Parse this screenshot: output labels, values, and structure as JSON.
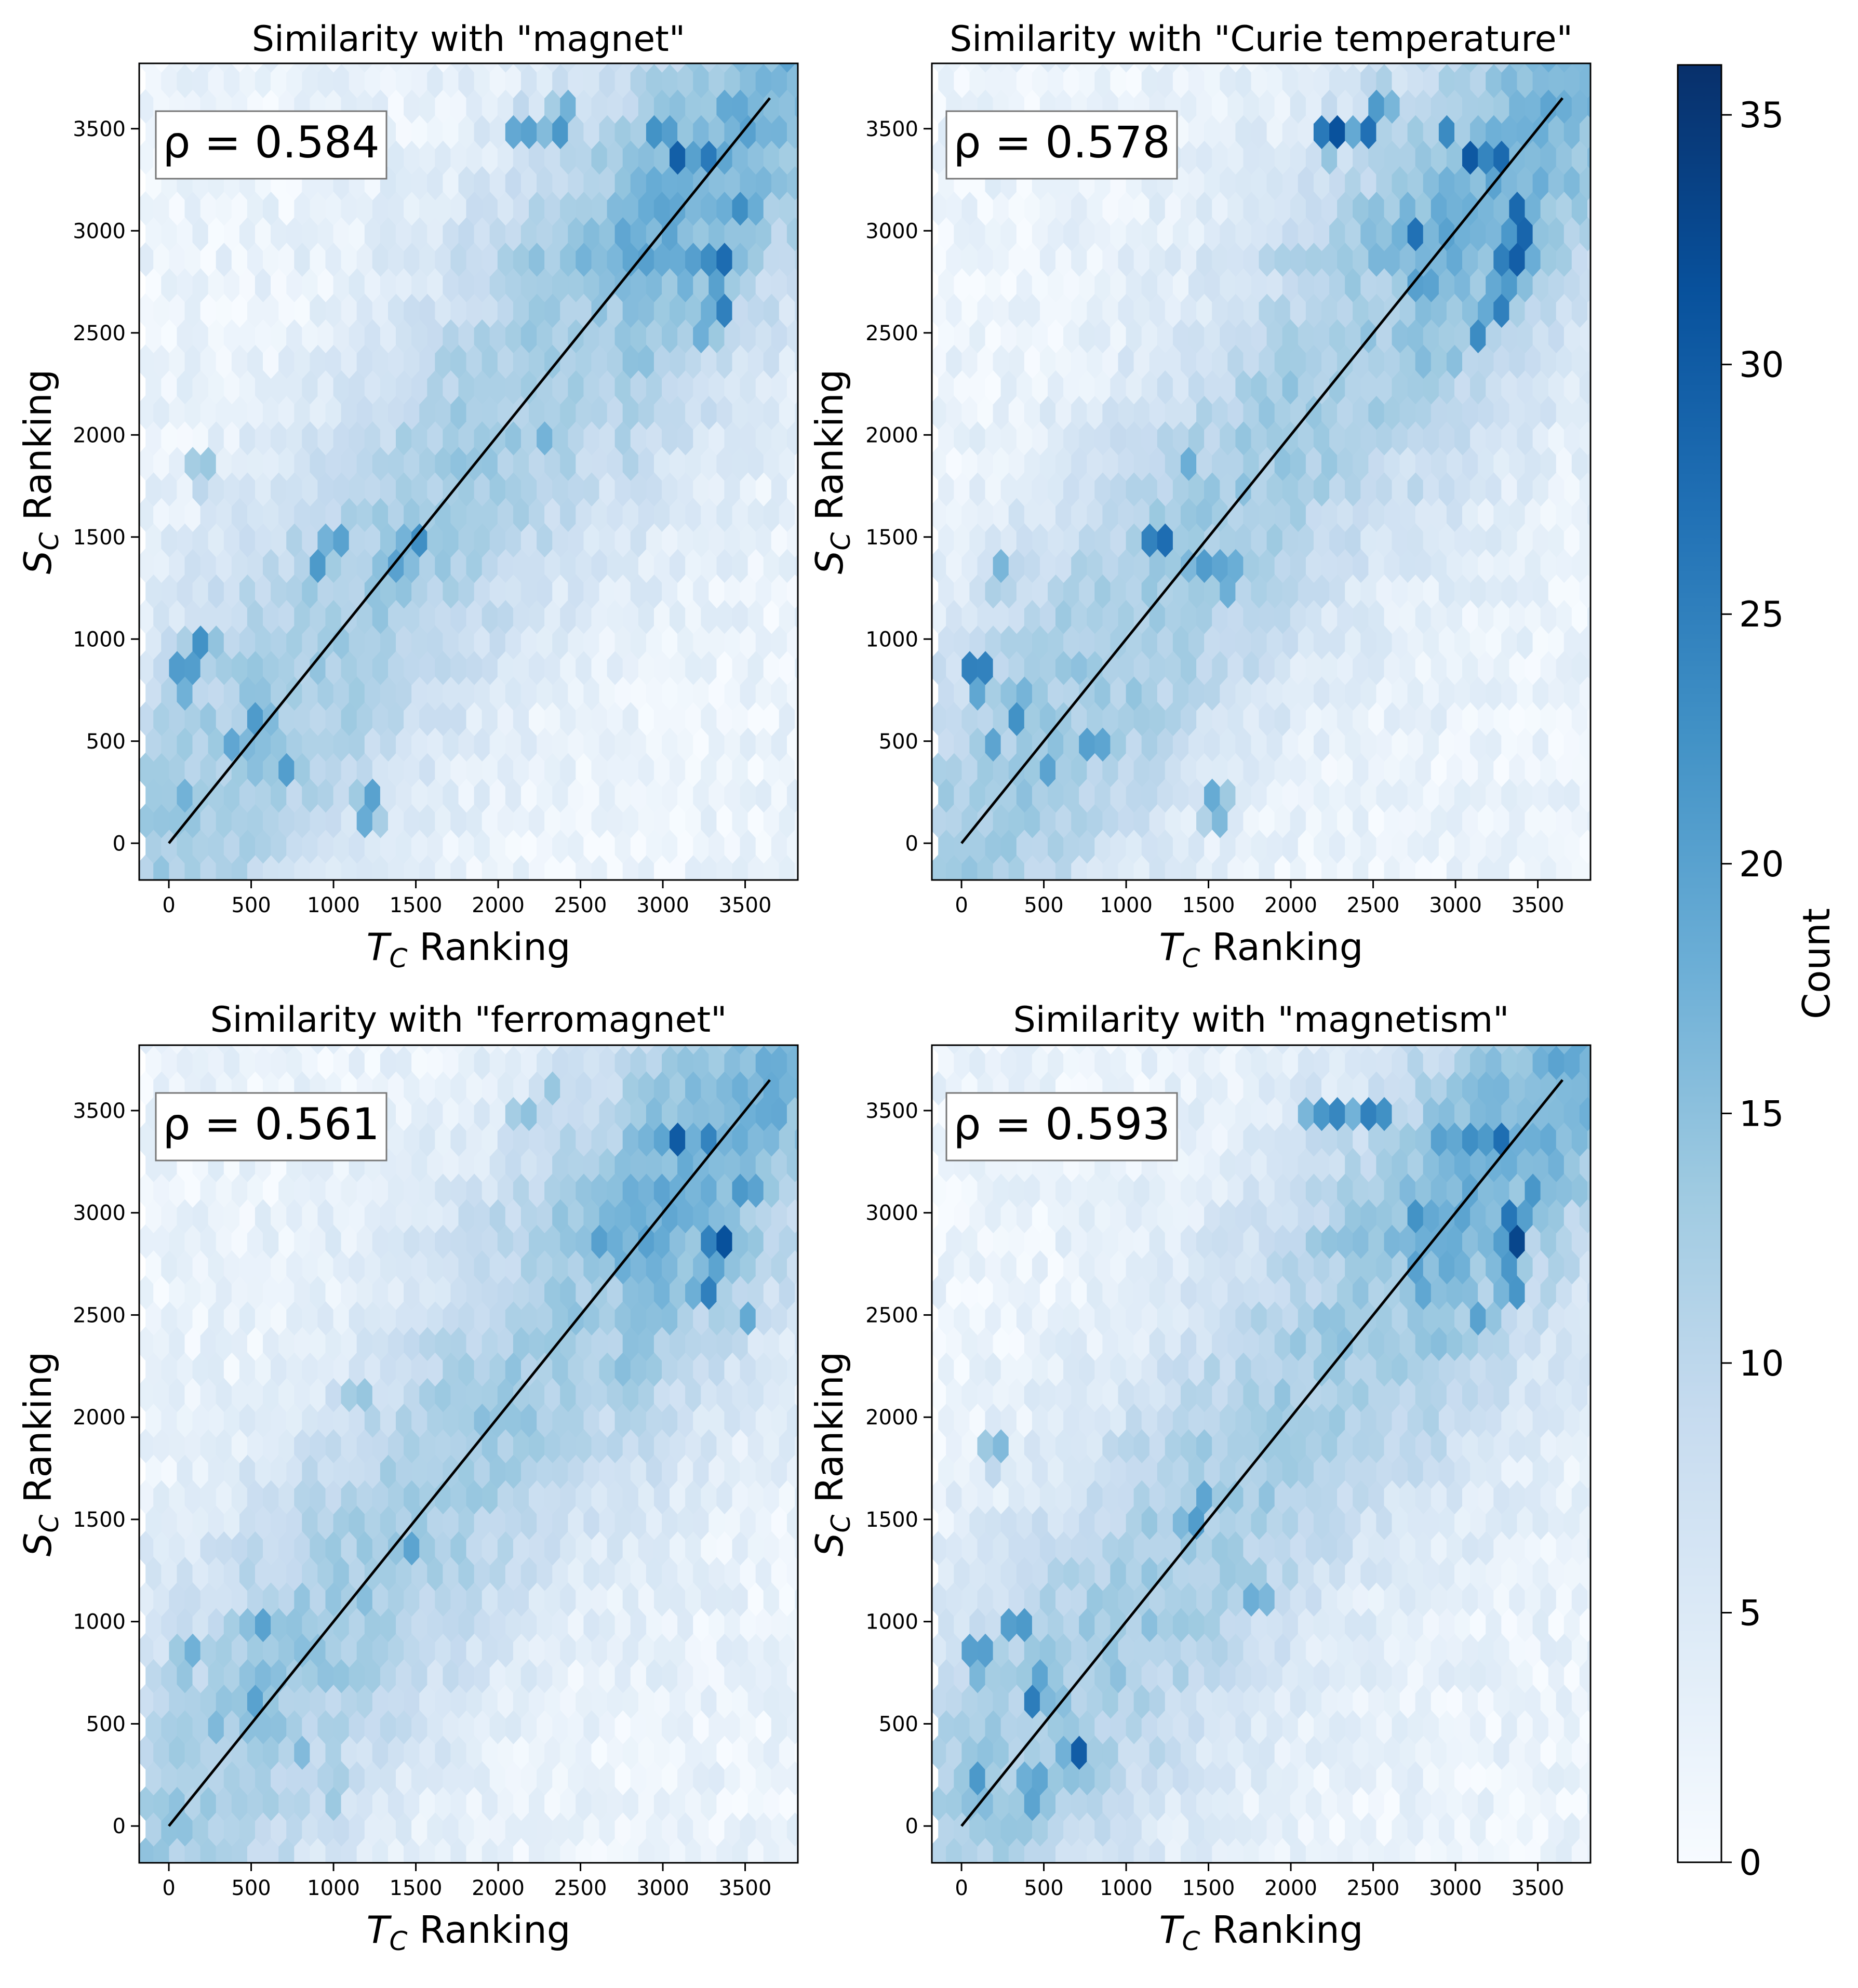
{
  "figure": {
    "colormap": "Blues",
    "colors": {
      "cmap_low": "#f7fbff",
      "cmap_mid": "#6baed6",
      "cmap_high": "#08306b",
      "diagonal": "#000000",
      "axes": "#000000",
      "annotation_box_edge": "#777777"
    }
  },
  "colorbar": {
    "label": "Count",
    "range": [
      0,
      36
    ],
    "ticks": [
      0,
      5,
      10,
      15,
      20,
      25,
      30,
      35
    ]
  },
  "chart_data": [
    {
      "type": "heatmap",
      "subtype": "hexbin",
      "title": "Similarity with \"magnet\"",
      "xlabel_base": "T",
      "xlabel_sub": "C",
      "xlabel_rest": " Ranking",
      "ylabel_base": "S",
      "ylabel_sub": "C",
      "ylabel_rest": " Ranking",
      "annotation": "ρ = 0.584",
      "rho": 0.584,
      "xlim": [
        -180,
        3820
      ],
      "ylim": [
        -180,
        3820
      ],
      "xticks": [
        0,
        500,
        1000,
        1500,
        2000,
        2500,
        3000,
        3500
      ],
      "yticks": [
        0,
        500,
        1000,
        1500,
        2000,
        2500,
        3000,
        3500
      ],
      "diagonal": [
        [
          0,
          0
        ],
        [
          3650,
          3650
        ]
      ],
      "hotspots": [
        {
          "x": 3350,
          "y": 2820,
          "count": 35
        },
        {
          "x": 3350,
          "y": 2650,
          "count": 28
        },
        {
          "x": 3100,
          "y": 3330,
          "count": 30
        },
        {
          "x": 3250,
          "y": 3330,
          "count": 28
        },
        {
          "x": 3500,
          "y": 3150,
          "count": 28
        },
        {
          "x": 3200,
          "y": 2820,
          "count": 24
        },
        {
          "x": 3000,
          "y": 3480,
          "count": 25
        },
        {
          "x": 2150,
          "y": 3480,
          "count": 24
        },
        {
          "x": 2350,
          "y": 3480,
          "count": 22
        },
        {
          "x": 2400,
          "y": 3640,
          "count": 18
        },
        {
          "x": 2750,
          "y": 3000,
          "count": 22
        },
        {
          "x": 3250,
          "y": 2500,
          "count": 20
        },
        {
          "x": 3500,
          "y": 2820,
          "count": 20
        },
        {
          "x": 2550,
          "y": 2820,
          "count": 18
        },
        {
          "x": 2300,
          "y": 1980,
          "count": 20
        },
        {
          "x": 1500,
          "y": 1480,
          "count": 26
        },
        {
          "x": 1400,
          "y": 1320,
          "count": 22
        },
        {
          "x": 1000,
          "y": 1480,
          "count": 22
        },
        {
          "x": 900,
          "y": 1320,
          "count": 22
        },
        {
          "x": 100,
          "y": 820,
          "count": 27
        },
        {
          "x": 200,
          "y": 980,
          "count": 22
        },
        {
          "x": 550,
          "y": 660,
          "count": 25
        },
        {
          "x": 400,
          "y": 500,
          "count": 22
        },
        {
          "x": 700,
          "y": 330,
          "count": 22
        },
        {
          "x": 1200,
          "y": 180,
          "count": 24
        },
        {
          "x": 100,
          "y": 180,
          "count": 20
        },
        {
          "x": 1700,
          "y": 2320,
          "count": 16
        },
        {
          "x": 200,
          "y": 1820,
          "count": 16
        }
      ]
    },
    {
      "type": "heatmap",
      "subtype": "hexbin",
      "title": "Similarity with \"Curie temperature\"",
      "xlabel_base": "T",
      "xlabel_sub": "C",
      "xlabel_rest": " Ranking",
      "ylabel_base": "S",
      "ylabel_sub": "C",
      "ylabel_rest": " Ranking",
      "annotation": "ρ = 0.578",
      "rho": 0.578,
      "xlim": [
        -180,
        3820
      ],
      "ylim": [
        -180,
        3820
      ],
      "xticks": [
        0,
        500,
        1000,
        1500,
        2000,
        2500,
        3000,
        3500
      ],
      "yticks": [
        0,
        500,
        1000,
        1500,
        2000,
        2500,
        3000,
        3500
      ],
      "diagonal": [
        [
          0,
          0
        ],
        [
          3650,
          3650
        ]
      ],
      "hotspots": [
        {
          "x": 3350,
          "y": 2820,
          "count": 36
        },
        {
          "x": 3250,
          "y": 2650,
          "count": 30
        },
        {
          "x": 3250,
          "y": 3330,
          "count": 33
        },
        {
          "x": 3100,
          "y": 3330,
          "count": 30
        },
        {
          "x": 3400,
          "y": 3150,
          "count": 30
        },
        {
          "x": 3400,
          "y": 3000,
          "count": 30
        },
        {
          "x": 2250,
          "y": 3480,
          "count": 33
        },
        {
          "x": 2550,
          "y": 3640,
          "count": 26
        },
        {
          "x": 2450,
          "y": 3480,
          "count": 26
        },
        {
          "x": 2750,
          "y": 3000,
          "count": 26
        },
        {
          "x": 2950,
          "y": 3480,
          "count": 24
        },
        {
          "x": 3500,
          "y": 2820,
          "count": 22
        },
        {
          "x": 3150,
          "y": 2500,
          "count": 22
        },
        {
          "x": 3000,
          "y": 2320,
          "count": 18
        },
        {
          "x": 1200,
          "y": 1480,
          "count": 31
        },
        {
          "x": 1450,
          "y": 1320,
          "count": 24
        },
        {
          "x": 1600,
          "y": 1320,
          "count": 26
        },
        {
          "x": 1350,
          "y": 1820,
          "count": 20
        },
        {
          "x": 100,
          "y": 820,
          "count": 30
        },
        {
          "x": 350,
          "y": 660,
          "count": 28
        },
        {
          "x": 800,
          "y": 500,
          "count": 24
        },
        {
          "x": 500,
          "y": 330,
          "count": 22
        },
        {
          "x": 1550,
          "y": 180,
          "count": 22
        },
        {
          "x": 100,
          "y": 180,
          "count": 18
        },
        {
          "x": 200,
          "y": 500,
          "count": 20
        },
        {
          "x": 250,
          "y": 1320,
          "count": 20
        }
      ]
    },
    {
      "type": "heatmap",
      "subtype": "hexbin",
      "title": "Similarity with \"ferromagnet\"",
      "xlabel_base": "T",
      "xlabel_sub": "C",
      "xlabel_rest": " Ranking",
      "ylabel_base": "S",
      "ylabel_sub": "C",
      "ylabel_rest": " Ranking",
      "annotation": "ρ = 0.561",
      "rho": 0.561,
      "xlim": [
        -180,
        3820
      ],
      "ylim": [
        -180,
        3820
      ],
      "xticks": [
        0,
        500,
        1000,
        1500,
        2000,
        2500,
        3000,
        3500
      ],
      "yticks": [
        0,
        500,
        1000,
        1500,
        2000,
        2500,
        3000,
        3500
      ],
      "diagonal": [
        [
          0,
          0
        ],
        [
          3650,
          3650
        ]
      ],
      "hotspots": [
        {
          "x": 3350,
          "y": 2820,
          "count": 36
        },
        {
          "x": 3250,
          "y": 2650,
          "count": 28
        },
        {
          "x": 3100,
          "y": 3330,
          "count": 32
        },
        {
          "x": 3250,
          "y": 3330,
          "count": 26
        },
        {
          "x": 3500,
          "y": 3150,
          "count": 26
        },
        {
          "x": 2950,
          "y": 3330,
          "count": 22
        },
        {
          "x": 2650,
          "y": 2820,
          "count": 24
        },
        {
          "x": 3500,
          "y": 2500,
          "count": 18
        },
        {
          "x": 2150,
          "y": 3480,
          "count": 18
        },
        {
          "x": 2350,
          "y": 3640,
          "count": 14
        },
        {
          "x": 1450,
          "y": 1320,
          "count": 22
        },
        {
          "x": 1700,
          "y": 1650,
          "count": 18
        },
        {
          "x": 550,
          "y": 660,
          "count": 22
        },
        {
          "x": 550,
          "y": 980,
          "count": 20
        },
        {
          "x": 100,
          "y": 820,
          "count": 20
        },
        {
          "x": 250,
          "y": 500,
          "count": 18
        },
        {
          "x": 1000,
          "y": 180,
          "count": 18
        },
        {
          "x": 800,
          "y": 330,
          "count": 16
        },
        {
          "x": 1150,
          "y": 2150,
          "count": 15
        }
      ]
    },
    {
      "type": "heatmap",
      "subtype": "hexbin",
      "title": "Similarity with \"magnetism\"",
      "xlabel_base": "T",
      "xlabel_sub": "C",
      "xlabel_rest": " Ranking",
      "ylabel_base": "S",
      "ylabel_sub": "C",
      "ylabel_rest": " Ranking",
      "annotation": "ρ = 0.593",
      "rho": 0.593,
      "xlim": [
        -180,
        3820
      ],
      "ylim": [
        -180,
        3820
      ],
      "xticks": [
        0,
        500,
        1000,
        1500,
        2000,
        2500,
        3000,
        3500
      ],
      "yticks": [
        0,
        500,
        1000,
        1500,
        2000,
        2500,
        3000,
        3500
      ],
      "diagonal": [
        [
          0,
          0
        ],
        [
          3650,
          3650
        ]
      ],
      "hotspots": [
        {
          "x": 3350,
          "y": 2820,
          "count": 36
        },
        {
          "x": 3250,
          "y": 3330,
          "count": 30
        },
        {
          "x": 3100,
          "y": 3330,
          "count": 26
        },
        {
          "x": 3350,
          "y": 3000,
          "count": 28
        },
        {
          "x": 3350,
          "y": 2650,
          "count": 26
        },
        {
          "x": 3500,
          "y": 3150,
          "count": 26
        },
        {
          "x": 2500,
          "y": 3480,
          "count": 28
        },
        {
          "x": 2300,
          "y": 3480,
          "count": 25
        },
        {
          "x": 2150,
          "y": 3480,
          "count": 24
        },
        {
          "x": 2950,
          "y": 3330,
          "count": 24
        },
        {
          "x": 2750,
          "y": 3000,
          "count": 22
        },
        {
          "x": 3150,
          "y": 2500,
          "count": 20
        },
        {
          "x": 1500,
          "y": 1650,
          "count": 20
        },
        {
          "x": 1400,
          "y": 1480,
          "count": 20
        },
        {
          "x": 1800,
          "y": 1150,
          "count": 20
        },
        {
          "x": 450,
          "y": 660,
          "count": 28
        },
        {
          "x": 700,
          "y": 330,
          "count": 30
        },
        {
          "x": 450,
          "y": 180,
          "count": 26
        },
        {
          "x": 350,
          "y": 980,
          "count": 25
        },
        {
          "x": 100,
          "y": 820,
          "count": 26
        },
        {
          "x": 100,
          "y": 180,
          "count": 26
        },
        {
          "x": 200,
          "y": 1820,
          "count": 18
        }
      ]
    }
  ]
}
